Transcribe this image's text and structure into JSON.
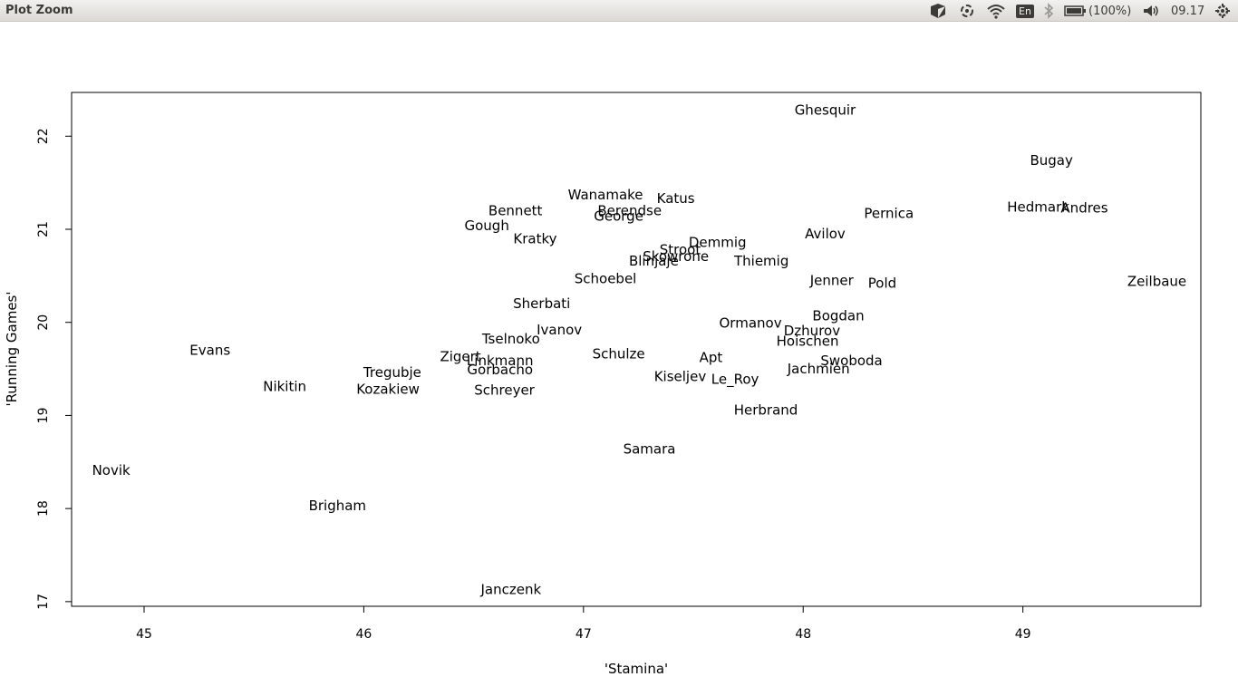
{
  "window": {
    "title": "Plot Zoom"
  },
  "tray": {
    "keyboard_layout": "En",
    "battery": "(100%)",
    "time": "09.17",
    "icons": [
      "dropbox-icon",
      "sync-icon",
      "wifi-icon",
      "keyboard-layout-icon",
      "bluetooth-icon",
      "battery-icon",
      "volume-icon",
      "gear-icon"
    ]
  },
  "chart_data": {
    "type": "scatter",
    "xlabel": "'Stamina'",
    "ylabel": "'Running Games'",
    "xlim": [
      44.67,
      49.81
    ],
    "ylim": [
      16.95,
      22.47
    ],
    "xticks": [
      45,
      46,
      47,
      48,
      49
    ],
    "yticks": [
      17,
      18,
      19,
      20,
      21,
      22
    ],
    "grid": false,
    "points": [
      {
        "label": "Ghesquir",
        "x": 48.1,
        "y": 22.28
      },
      {
        "label": "Bugay",
        "x": 49.13,
        "y": 21.74
      },
      {
        "label": "Hedmark",
        "x": 49.07,
        "y": 21.24
      },
      {
        "label": "Andres",
        "x": 49.28,
        "y": 21.23
      },
      {
        "label": "Wanamake",
        "x": 47.1,
        "y": 21.37
      },
      {
        "label": "Katus",
        "x": 47.42,
        "y": 21.33
      },
      {
        "label": "Berendse",
        "x": 47.21,
        "y": 21.2
      },
      {
        "label": "George",
        "x": 47.16,
        "y": 21.14
      },
      {
        "label": "Bennett",
        "x": 46.69,
        "y": 21.2
      },
      {
        "label": "Gough",
        "x": 46.56,
        "y": 21.04
      },
      {
        "label": "Pernica",
        "x": 48.39,
        "y": 21.17
      },
      {
        "label": "Kratky",
        "x": 46.78,
        "y": 20.9
      },
      {
        "label": "Avilov",
        "x": 48.1,
        "y": 20.95
      },
      {
        "label": "Demmig",
        "x": 47.61,
        "y": 20.86
      },
      {
        "label": "Stroot",
        "x": 47.44,
        "y": 20.78
      },
      {
        "label": "Skowrone",
        "x": 47.42,
        "y": 20.71
      },
      {
        "label": "Blinjaje",
        "x": 47.32,
        "y": 20.66
      },
      {
        "label": "Thiemig",
        "x": 47.81,
        "y": 20.66
      },
      {
        "label": "Schoebel",
        "x": 47.1,
        "y": 20.47
      },
      {
        "label": "Jenner",
        "x": 48.13,
        "y": 20.45
      },
      {
        "label": "Pold",
        "x": 48.36,
        "y": 20.42
      },
      {
        "label": "Zeilbaue",
        "x": 49.61,
        "y": 20.44
      },
      {
        "label": "Sherbati",
        "x": 46.81,
        "y": 20.2
      },
      {
        "label": "Bogdan",
        "x": 48.16,
        "y": 20.07
      },
      {
        "label": "Ormanov",
        "x": 47.76,
        "y": 19.99
      },
      {
        "label": "Dzhurov",
        "x": 48.04,
        "y": 19.91
      },
      {
        "label": "Ivanov",
        "x": 46.89,
        "y": 19.92
      },
      {
        "label": "Tselnoko",
        "x": 46.67,
        "y": 19.82
      },
      {
        "label": "Hoischen",
        "x": 48.02,
        "y": 19.8
      },
      {
        "label": "Evans",
        "x": 45.3,
        "y": 19.7
      },
      {
        "label": "Zigert",
        "x": 46.44,
        "y": 19.63
      },
      {
        "label": "Schulze",
        "x": 47.16,
        "y": 19.66
      },
      {
        "label": "Apt",
        "x": 47.58,
        "y": 19.62
      },
      {
        "label": "Swoboda",
        "x": 48.22,
        "y": 19.59
      },
      {
        "label": "Linkmann",
        "x": 46.62,
        "y": 19.59
      },
      {
        "label": "Jachmien",
        "x": 48.07,
        "y": 19.5
      },
      {
        "label": "Gorbacho",
        "x": 46.62,
        "y": 19.49
      },
      {
        "label": "Tregubje",
        "x": 46.13,
        "y": 19.46
      },
      {
        "label": "Kiseljev",
        "x": 47.44,
        "y": 19.42
      },
      {
        "label": "Le_Roy",
        "x": 47.69,
        "y": 19.39
      },
      {
        "label": "Nikitin",
        "x": 45.64,
        "y": 19.31
      },
      {
        "label": "Kozakiew",
        "x": 46.11,
        "y": 19.28
      },
      {
        "label": "Schreyer",
        "x": 46.64,
        "y": 19.27
      },
      {
        "label": "Herbrand",
        "x": 47.83,
        "y": 19.06
      },
      {
        "label": "Samara",
        "x": 47.3,
        "y": 18.64
      },
      {
        "label": "Novik",
        "x": 44.85,
        "y": 18.41
      },
      {
        "label": "Brigham",
        "x": 45.88,
        "y": 18.03
      },
      {
        "label": "Janczenk",
        "x": 46.67,
        "y": 17.13
      }
    ]
  }
}
